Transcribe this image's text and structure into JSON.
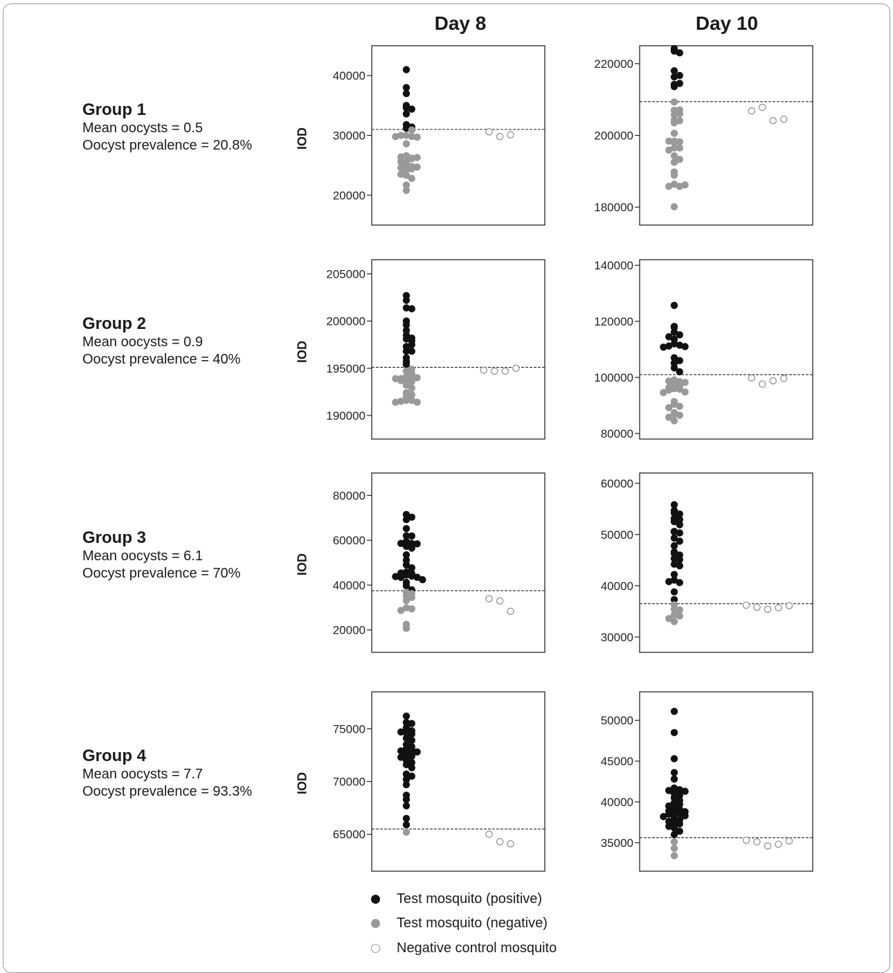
{
  "columns": [
    "Day 8",
    "Day 10"
  ],
  "y_axis_label": "IOD",
  "groups": [
    {
      "title": "Group 1",
      "mean": "Mean oocysts = 0.5",
      "prevalence": "Oocyst prevalence = 20.8%"
    },
    {
      "title": "Group 2",
      "mean": "Mean oocysts = 0.9",
      "prevalence": "Oocyst prevalence = 40%"
    },
    {
      "title": "Group 3",
      "mean": "Mean oocysts = 6.1",
      "prevalence": "Oocyst prevalence = 70%"
    },
    {
      "title": "Group 4",
      "mean": "Mean oocysts = 7.7",
      "prevalence": "Oocyst prevalence = 93.3%"
    }
  ],
  "legend": {
    "positive": "Test mosquito (positive)",
    "negative": "Test mosquito (negative)",
    "control": "Negative control mosquito"
  },
  "colors": {
    "positive": "#111111",
    "negative": "#999999",
    "control": "#999999"
  },
  "chart_data": [
    {
      "type": "scatter",
      "group": "Group 1",
      "day": "Day 8",
      "ylim": [
        15000,
        45000
      ],
      "yticks": [
        20000,
        30000,
        40000
      ],
      "cutoff": 31000,
      "series": [
        {
          "name": "Test mosquito (positive)",
          "values": [
            41000,
            38000,
            37000,
            34600,
            34400,
            35000,
            33600,
            31800,
            31200,
            31400
          ]
        },
        {
          "name": "Test mosquito (negative)",
          "values": [
            30000,
            29800,
            30000,
            29700,
            29800,
            30900,
            28600,
            26600,
            26200,
            25600,
            26400,
            26100,
            26300,
            25600,
            25200,
            24800,
            24200,
            24400,
            24600,
            24700,
            23300,
            22800,
            23500,
            21700,
            20800
          ]
        },
        {
          "name": "Negative control mosquito",
          "values": [
            30600,
            29800,
            30100
          ]
        }
      ]
    },
    {
      "type": "scatter",
      "group": "Group 1",
      "day": "Day 10",
      "ylim": [
        175000,
        225000
      ],
      "yticks": [
        180000,
        200000,
        220000
      ],
      "cutoff": 209400,
      "series": [
        {
          "name": "Test mosquito (positive)",
          "values": [
            223500,
            223000,
            224200,
            218000,
            216300,
            216700,
            214200,
            213600,
            214500
          ]
        },
        {
          "name": "Test mosquito (negative)",
          "values": [
            209300,
            207000,
            207100,
            205800,
            206000,
            204300,
            204100,
            203500,
            200600,
            198400,
            198200,
            198400,
            198000,
            196500,
            196500,
            195900,
            194300,
            192500,
            193300,
            189800,
            188900,
            186400,
            185800,
            185800,
            186200,
            180100
          ]
        },
        {
          "name": "Negative control mosquito",
          "values": [
            206800,
            207800,
            204100,
            204500
          ]
        }
      ]
    },
    {
      "type": "scatter",
      "group": "Group 2",
      "day": "Day 8",
      "ylim": [
        187500,
        206500
      ],
      "yticks": [
        190000,
        195000,
        200000,
        205000
      ],
      "cutoff": 195100,
      "series": [
        {
          "name": "Test mosquito (positive)",
          "values": [
            202700,
            202200,
            201400,
            201300,
            200000,
            199600,
            199000,
            198500,
            198200,
            198100,
            197900,
            197300,
            197500,
            196800,
            196800,
            196100,
            195700,
            195400
          ]
        },
        {
          "name": "Test mosquito (negative)",
          "values": [
            194900,
            194700,
            194400,
            194100,
            194000,
            193900,
            193700,
            193600,
            194000,
            193900,
            193700,
            193200,
            192900,
            192400,
            192200,
            192000,
            191600,
            191600,
            191500,
            191400,
            191400
          ]
        },
        {
          "name": "Negative control mosquito",
          "values": [
            194800,
            194700,
            194700,
            195000
          ]
        }
      ]
    },
    {
      "type": "scatter",
      "group": "Group 2",
      "day": "Day 10",
      "ylim": [
        78000,
        142000
      ],
      "yticks": [
        80000,
        100000,
        120000,
        140000
      ],
      "cutoff": 101000,
      "series": [
        {
          "name": "Test mosquito (positive)",
          "values": [
            125700,
            118200,
            117800,
            116100,
            115200,
            114500,
            113600,
            112000,
            111500,
            111200,
            111000,
            110800,
            107000,
            106000,
            105100,
            103400,
            102000
          ]
        },
        {
          "name": "Test mosquito (negative)",
          "values": [
            99100,
            98500,
            98700,
            98200,
            97300,
            96800,
            96300,
            96000,
            95800,
            95500,
            94800,
            94600,
            91400,
            90400,
            89700,
            89200,
            87400,
            86900,
            86500,
            85800,
            84500
          ]
        },
        {
          "name": "Negative control mosquito",
          "values": [
            99800,
            97600,
            98800,
            99600
          ]
        }
      ]
    },
    {
      "type": "scatter",
      "group": "Group 3",
      "day": "Day 8",
      "ylim": [
        10000,
        90000
      ],
      "yticks": [
        20000,
        40000,
        60000,
        80000
      ],
      "cutoff": 37500,
      "series": [
        {
          "name": "Test mosquito (positive)",
          "values": [
            71500,
            70300,
            69200,
            65200,
            62000,
            61900,
            59500,
            58600,
            58600,
            58400,
            57300,
            56500,
            53500,
            51100,
            49000,
            47700,
            45800,
            45200,
            45400,
            44500,
            44000,
            43400,
            43500,
            43800,
            42400,
            41200,
            39700,
            37900
          ]
        },
        {
          "name": "Test mosquito (negative)",
          "values": [
            36700,
            36200,
            35100,
            34500,
            33100,
            29900,
            29400,
            28700,
            22500,
            20700
          ]
        },
        {
          "name": "Negative control mosquito",
          "values": [
            33900,
            32900,
            28300
          ]
        }
      ]
    },
    {
      "type": "scatter",
      "group": "Group 3",
      "day": "Day 10",
      "ylim": [
        27000,
        62000
      ],
      "yticks": [
        30000,
        40000,
        50000,
        60000
      ],
      "cutoff": 36500,
      "series": [
        {
          "name": "Test mosquito (positive)",
          "values": [
            55800,
            54700,
            54200,
            54000,
            53100,
            52900,
            52500,
            51900,
            50600,
            50500,
            50300,
            49300,
            48700,
            47800,
            46600,
            46300,
            46000,
            45300,
            45100,
            44200,
            43900,
            42200,
            41100,
            40600,
            40800,
            38800,
            37300
          ]
        },
        {
          "name": "Test mosquito (negative)",
          "values": [
            36300,
            35400,
            35300,
            34300,
            34100,
            33600,
            33000
          ]
        },
        {
          "name": "Negative control mosquito",
          "values": [
            36200,
            35800,
            35400,
            35700,
            36100
          ]
        }
      ]
    },
    {
      "type": "scatter",
      "group": "Group 4",
      "day": "Day 8",
      "ylim": [
        61500,
        78500
      ],
      "yticks": [
        65000,
        70000,
        75000
      ],
      "cutoff": 65500,
      "series": [
        {
          "name": "Test mosquito (positive)",
          "values": [
            76200,
            75600,
            75500,
            75100,
            74800,
            74700,
            74600,
            74500,
            74100,
            73900,
            73500,
            73300,
            73100,
            73000,
            72900,
            72800,
            72600,
            72400,
            72300,
            72000,
            71800,
            71600,
            71300,
            70700,
            70500,
            70200,
            69700,
            68700,
            68300,
            67700,
            66500,
            65900
          ]
        },
        {
          "name": "Test mosquito (negative)",
          "values": [
            65200
          ]
        },
        {
          "name": "Negative control mosquito",
          "values": [
            65000,
            64300,
            64100
          ]
        }
      ]
    },
    {
      "type": "scatter",
      "group": "Group 4",
      "day": "Day 10",
      "ylim": [
        31500,
        53500
      ],
      "yticks": [
        35000,
        40000,
        45000,
        50000
      ],
      "cutoff": 35600,
      "series": [
        {
          "name": "Test mosquito (positive)",
          "values": [
            51100,
            48500,
            45300,
            43600,
            42800,
            41700,
            41500,
            41400,
            41300,
            41000,
            40800,
            40500,
            40200,
            39900,
            39700,
            39500,
            39300,
            39100,
            38900,
            38800,
            38700,
            38600,
            38500,
            38300,
            38200,
            38000,
            37800,
            37600,
            37400,
            37300,
            37000,
            36800,
            36400,
            36000
          ]
        },
        {
          "name": "Test mosquito (negative)",
          "values": [
            35100,
            34300,
            33400
          ]
        },
        {
          "name": "Negative control mosquito",
          "values": [
            35300,
            35100,
            34600,
            34800,
            35200
          ]
        }
      ]
    }
  ]
}
